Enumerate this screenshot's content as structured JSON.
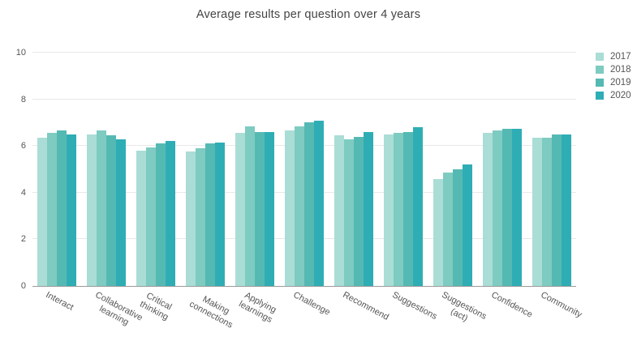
{
  "chart_data": {
    "type": "bar",
    "title": "Average results per question over 4 years",
    "categories": [
      "Interact",
      "Collaborative\nlearning",
      "Critical\nthinking",
      "Making\nconnections",
      "Applying\nlearnings",
      "Challenge",
      "Recommend",
      "Suggestions",
      "Suggestions\n(act)",
      "Confidence",
      "Community"
    ],
    "series": [
      {
        "name": "2017",
        "color": "#aaddd6",
        "values": [
          6.35,
          6.5,
          5.8,
          5.75,
          6.55,
          6.65,
          6.45,
          6.5,
          4.6,
          6.55,
          6.35
        ]
      },
      {
        "name": "2018",
        "color": "#7ecbc1",
        "values": [
          6.55,
          6.65,
          5.95,
          5.9,
          6.85,
          6.85,
          6.3,
          6.55,
          4.85,
          6.65,
          6.35
        ]
      },
      {
        "name": "2019",
        "color": "#55b9b3",
        "values": [
          6.65,
          6.45,
          6.1,
          6.1,
          6.6,
          7.0,
          6.4,
          6.6,
          5.0,
          6.75,
          6.5
        ]
      },
      {
        "name": "2020",
        "color": "#2fadb5",
        "values": [
          6.5,
          6.3,
          6.2,
          6.15,
          6.6,
          7.1,
          6.6,
          6.8,
          5.2,
          6.75,
          6.5
        ]
      }
    ],
    "xlabel": "",
    "ylabel": "",
    "ylim": [
      0,
      10
    ],
    "yticks": [
      0,
      2,
      4,
      6,
      8,
      10
    ],
    "grid": true,
    "legend_position": "top-right"
  },
  "colors": {
    "background": "#ffffff",
    "title": "#444444",
    "tick_label": "#555555",
    "gridline": "#e8e8e8",
    "axis_line": "#9a9a9a"
  }
}
